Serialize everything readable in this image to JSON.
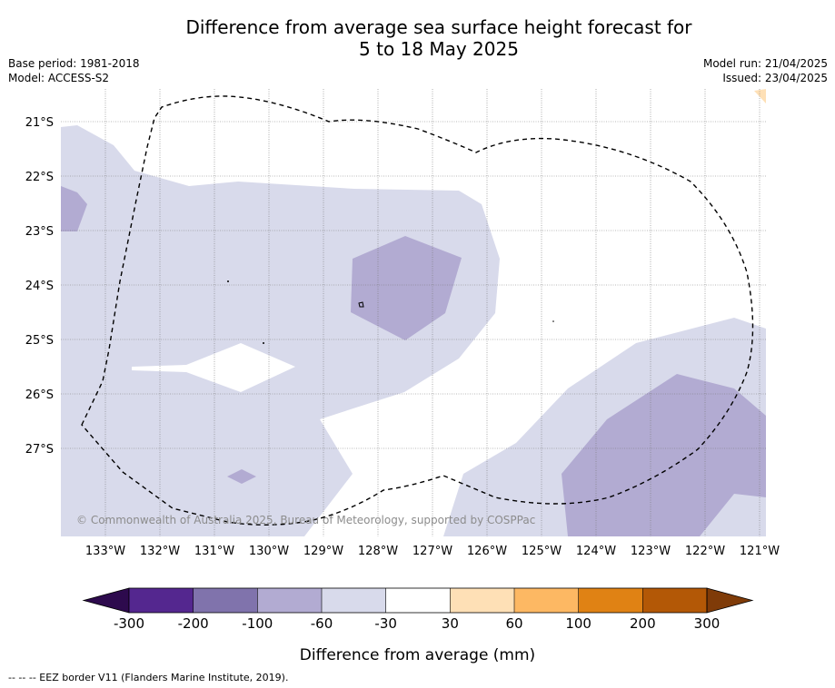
{
  "title_line1": "Difference from average sea surface height forecast for",
  "title_line2": "5 to 18 May 2025",
  "base_period": "Base period: 1981-2018",
  "model": "Model: ACCESS-S2",
  "model_run": "Model run: 21/04/2025",
  "issued": "Issued: 23/04/2025",
  "copyright": "© Commonwealth of Australia 2025, Bureau of Meteorology, supported by COSPPac",
  "lat_labels": [
    "21°S",
    "22°S",
    "23°S",
    "24°S",
    "25°S",
    "26°S",
    "27°S"
  ],
  "lon_labels": [
    "133°W",
    "132°W",
    "131°W",
    "130°W",
    "129°W",
    "128°W",
    "127°W",
    "126°W",
    "125°W",
    "124°W",
    "123°W",
    "122°W",
    "121°W"
  ],
  "colorbar": {
    "label": "Difference from average (mm)",
    "ticks": [
      "-300",
      "-200",
      "-100",
      "-60",
      "-30",
      "30",
      "60",
      "100",
      "200",
      "300"
    ],
    "colors": [
      "#2d0a4d",
      "#54278f",
      "#8073ac",
      "#b2abd2",
      "#d8daeb",
      "#ffffff",
      "#fee0b6",
      "#fdb863",
      "#e08214",
      "#b35806",
      "#7f3b08"
    ]
  },
  "footnote": "--  --  -- EEZ border V11 (Flanders Marine Institute, 2019)."
}
